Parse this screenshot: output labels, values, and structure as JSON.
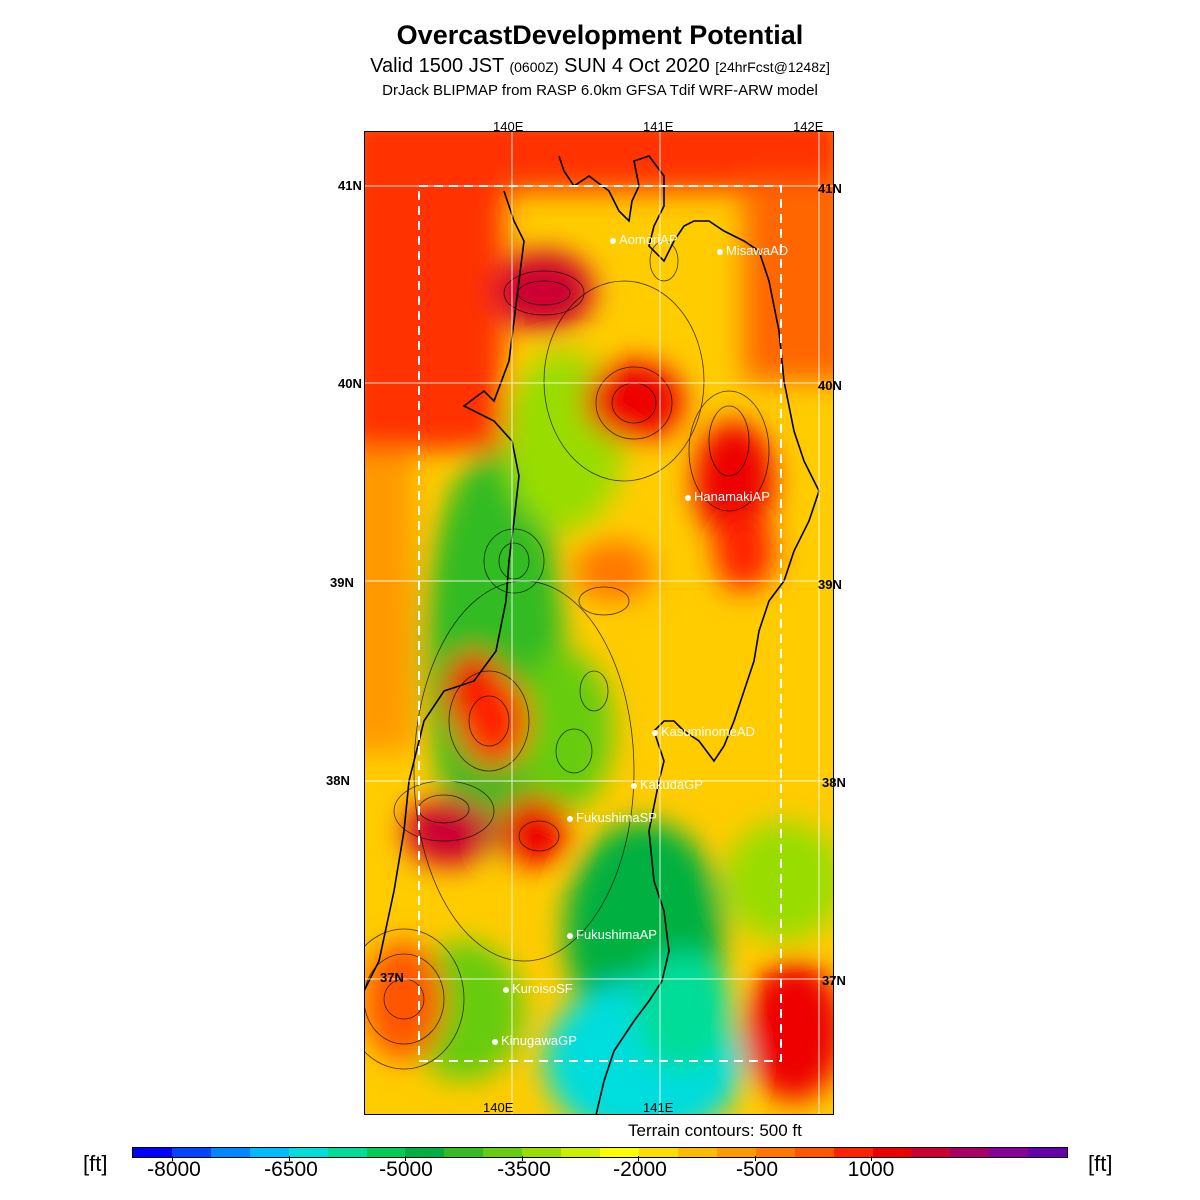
{
  "header": {
    "title": "OvercastDevelopment Potential",
    "subtitle_a": "Valid 1500 JST ",
    "subtitle_small_a": "(0600Z)",
    "subtitle_b": " SUN 4 Oct 2020 ",
    "subtitle_small_b": "[24hrFcst@1248z]",
    "model_line": "DrJack BLIPMAP from RASP 6.0km GFSA Tdif WRF-ARW model"
  },
  "map": {
    "lon_labels_top": [
      "140E",
      "141E",
      "142E"
    ],
    "lon_labels_bottom": [
      "140E",
      "141E"
    ],
    "lat_labels_left": [
      "41N",
      "40N",
      "39N",
      "38N",
      "37N"
    ],
    "lat_labels_right": [
      "41N",
      "40N",
      "39N",
      "38N",
      "37N"
    ],
    "stations": [
      {
        "name": "AomoriAP",
        "lat": 40.74,
        "lon": 140.69
      },
      {
        "name": "MisawaAD",
        "lat": 40.7,
        "lon": 141.37
      },
      {
        "name": "HanamakiAP",
        "lat": 39.43,
        "lon": 141.14
      },
      {
        "name": "KasuminomeAD",
        "lat": 38.24,
        "lon": 140.92
      },
      {
        "name": "KakudaGP",
        "lat": 37.98,
        "lon": 140.82
      },
      {
        "name": "FukushimaSP",
        "lat": 37.82,
        "lon": 140.39
      },
      {
        "name": "FukushimaAP",
        "lat": 37.23,
        "lon": 140.43
      },
      {
        "name": "KuroisoSF",
        "lat": 36.97,
        "lon": 139.97
      },
      {
        "name": "KinugawaGP",
        "lat": 36.7,
        "lon": 139.9
      }
    ],
    "terrain_note": "Terrain contours: 500 ft"
  },
  "colorbar": {
    "unit_left": "[ft]",
    "unit_right": "[ft]",
    "labels": [
      "-8000",
      "-6500",
      "-5000",
      "-3500",
      "-2000",
      "-500",
      "1000"
    ],
    "colors": [
      "#0000ff",
      "#0044ff",
      "#0088ff",
      "#00bbff",
      "#00dddd",
      "#00dd99",
      "#00cc55",
      "#00b040",
      "#33bb22",
      "#66cc11",
      "#99dd00",
      "#ccee00",
      "#ffff00",
      "#ffdd00",
      "#ffbb00",
      "#ff9900",
      "#ff7700",
      "#ff5500",
      "#ff2200",
      "#ee0000",
      "#cc0033",
      "#aa0066",
      "#880099",
      "#6600aa"
    ]
  }
}
